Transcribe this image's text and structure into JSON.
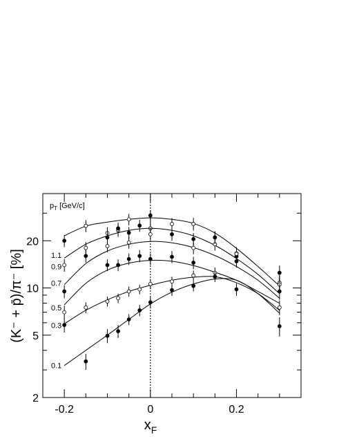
{
  "chart_data": {
    "type": "scatter",
    "y_label": "(K⁻ + p̄)/π⁻ [%]",
    "x_label": {
      "text": "x",
      "subscript": "F"
    },
    "legend_title": {
      "text": "p",
      "subscript": "T",
      "rest": " [GeV/c]"
    },
    "xlim": [
      -0.25,
      0.35
    ],
    "xticks": [
      -0.2,
      0,
      0.2
    ],
    "minor_xticks": [
      -0.15,
      -0.1,
      -0.05,
      0.05,
      0.1,
      0.15,
      0.25,
      0.3
    ],
    "ylim": [
      2,
      40
    ],
    "log_y": true,
    "yticks": [
      2,
      5,
      10,
      20
    ],
    "minor_yticks": [
      3,
      4,
      6,
      7,
      8,
      9,
      30
    ],
    "vline": 0,
    "x": [
      -0.2,
      -0.15,
      -0.1,
      -0.075,
      -0.05,
      -0.025,
      0,
      0.05,
      0.1,
      0.15,
      0.2,
      0.3
    ],
    "fit_x": [
      -0.2,
      -0.15,
      -0.1,
      -0.05,
      0,
      0.05,
      0.1,
      0.15,
      0.2,
      0.25,
      0.3
    ],
    "series": [
      {
        "name": "1.1",
        "filled": false,
        "values": [
          null,
          24.9,
          22.4,
          23.3,
          27.4,
          null,
          24.0,
          25.6,
          25.6,
          null,
          16.6,
          10.8
        ],
        "errors": [
          null,
          2.2,
          2.0,
          2.1,
          2.3,
          null,
          2.2,
          2.3,
          2.4,
          null,
          1.6,
          1.2
        ],
        "fit": [
          21.5,
          24.8,
          26.3,
          27.4,
          28.0,
          27.4,
          25.8,
          22.4,
          17.9,
          13.7,
          10.3
        ]
      },
      {
        "name": "0.9",
        "filled": true,
        "values": [
          20.0,
          null,
          21.0,
          24.0,
          22.5,
          25.0,
          29.0,
          22.0,
          20.5,
          21.0,
          15.9,
          12.5
        ],
        "errors": [
          1.8,
          null,
          1.9,
          2.1,
          2.0,
          2.2,
          2.4,
          2.0,
          1.9,
          2.0,
          1.5,
          1.4
        ],
        "fit": [
          15.5,
          19.0,
          21.5,
          23.3,
          24.0,
          23.3,
          21.5,
          18.7,
          15.4,
          12.2,
          9.2
        ]
      },
      {
        "name": "0.7",
        "filled": false,
        "values": [
          14.0,
          18.0,
          18.5,
          null,
          19.5,
          null,
          22.0,
          null,
          18.0,
          19.0,
          16.5,
          10.5
        ],
        "errors": [
          1.3,
          1.6,
          1.6,
          null,
          1.7,
          null,
          1.9,
          null,
          1.6,
          1.7,
          1.5,
          1.2
        ],
        "fit": [
          10.5,
          14.3,
          17.2,
          19.0,
          19.8,
          19.4,
          18.1,
          16.1,
          13.7,
          11.2,
          8.6
        ]
      },
      {
        "name": "0.5",
        "filled": true,
        "values": [
          9.5,
          16.0,
          14.0,
          14.0,
          15.3,
          16.0,
          15.3,
          15.8,
          14.5,
          21.0,
          14.8,
          9.5
        ],
        "errors": [
          0.9,
          1.5,
          1.2,
          1.2,
          1.3,
          1.4,
          1.3,
          1.4,
          1.3,
          1.9,
          1.3,
          1.1
        ],
        "fit": [
          7.8,
          10.7,
          13.0,
          14.4,
          15.0,
          14.8,
          13.9,
          12.6,
          11.2,
          9.5,
          7.98
        ]
      },
      {
        "name": "0.3",
        "filled": false,
        "values": [
          7.0,
          7.5,
          8.2,
          8.6,
          9.5,
          9.8,
          10.6,
          11.0,
          12.0,
          12.5,
          null,
          7.5
        ],
        "errors": [
          0.7,
          0.6,
          0.6,
          0.6,
          0.7,
          0.7,
          0.8,
          0.8,
          0.9,
          1.0,
          null,
          0.8
        ],
        "fit": [
          5.9,
          7.2,
          8.4,
          9.5,
          10.4,
          11.2,
          11.7,
          11.8,
          10.8,
          9.2,
          7.2
        ]
      },
      {
        "name": "0.1",
        "filled": true,
        "values": [
          5.8,
          3.4,
          4.95,
          5.3,
          6.3,
          7.2,
          8.1,
          9.7,
          10.3,
          11.8,
          9.8,
          5.7
        ],
        "errors": [
          0.6,
          0.4,
          0.5,
          0.5,
          0.5,
          0.6,
          0.7,
          0.8,
          0.8,
          0.9,
          0.9,
          0.8
        ],
        "fit": [
          3.2,
          4.0,
          5.0,
          6.3,
          7.9,
          9.4,
          10.6,
          11.4,
          11.2,
          9.2,
          6.9
        ]
      }
    ]
  }
}
